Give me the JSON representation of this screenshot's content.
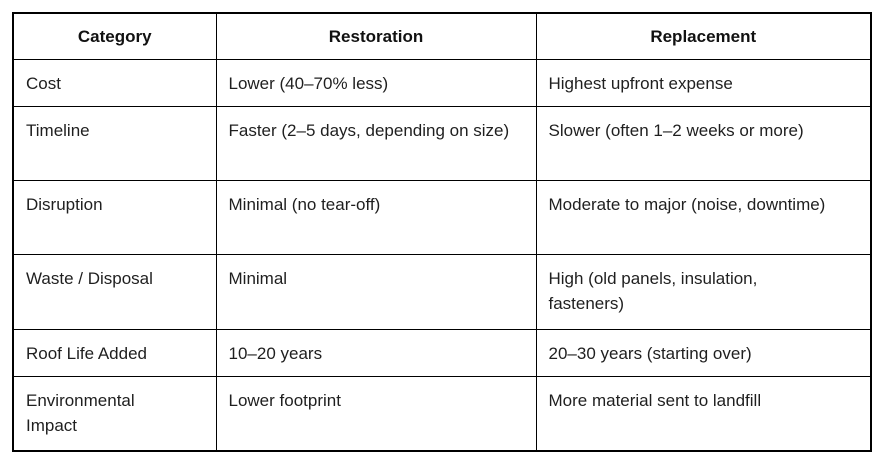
{
  "colors": {
    "background": "#ffffff",
    "border": "#000000",
    "text": "#1f1f1f"
  },
  "table": {
    "columns": [
      "Category",
      "Restoration",
      "Replacement"
    ],
    "rows": [
      [
        "Cost",
        "Lower (40–70% less)",
        "Highest upfront expense"
      ],
      [
        "Timeline",
        "Faster (2–5 days, depending on size)",
        "Slower (often 1–2 weeks or more)"
      ],
      [
        "Disruption",
        "Minimal (no tear-off)",
        "Moderate to major (noise, downtime)"
      ],
      [
        "Waste / Disposal",
        "Minimal",
        "High (old panels, insulation, fasteners)"
      ],
      [
        "Roof Life Added",
        "10–20 years",
        "20–30 years (starting over)"
      ],
      [
        "Environmental Impact",
        "Lower footprint",
        "More material sent to landfill"
      ]
    ]
  }
}
